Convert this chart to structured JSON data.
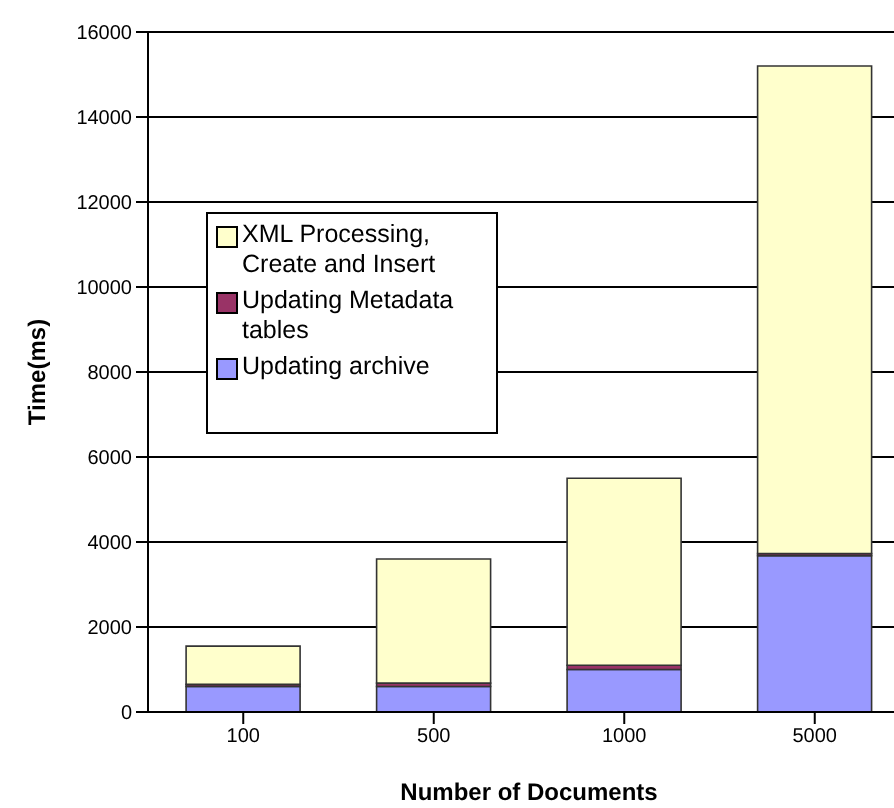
{
  "chart_data": {
    "type": "bar",
    "xlabel": "Number of Documents",
    "ylabel": "Time(ms)",
    "categories": [
      "100",
      "500",
      "1000",
      "5000"
    ],
    "stacked": true,
    "series": [
      {
        "name": "Updating archive",
        "color": "#9999ff",
        "values": [
          600,
          600,
          1000,
          3680
        ]
      },
      {
        "name": "Updating Metadata tables",
        "color": "#993366",
        "values": [
          50,
          80,
          100,
          50
        ]
      },
      {
        "name": "XML Processing, Create  and Insert",
        "color": "#ffffcc",
        "values": [
          900,
          2920,
          4400,
          11470
        ]
      }
    ],
    "ylim": [
      0,
      16000
    ],
    "yticks": [
      0,
      2000,
      4000,
      6000,
      8000,
      10000,
      12000,
      14000,
      16000
    ],
    "grid": "y",
    "legend": "left"
  }
}
